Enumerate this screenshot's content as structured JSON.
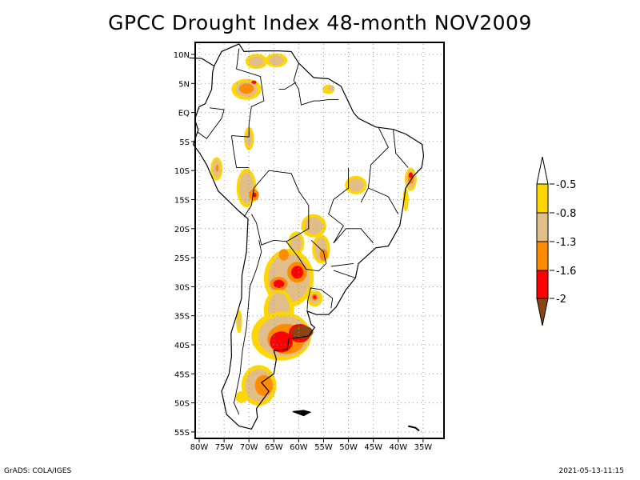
{
  "title": "GPCC Drought Index 48-month NOV2009",
  "footer": {
    "left": "GrADS: COLA/IGES",
    "right": "2021-05-13-11:15"
  },
  "map": {
    "region": "South America",
    "lon_range": [
      -80,
      -30
    ],
    "lat_range": [
      -55,
      12
    ],
    "x_ticks": [
      "80W",
      "75W",
      "70W",
      "65W",
      "60W",
      "55W",
      "50W",
      "45W",
      "40W",
      "35W"
    ],
    "y_ticks": [
      "10N",
      "5N",
      "EQ",
      "5S",
      "10S",
      "15S",
      "20S",
      "25S",
      "30S",
      "35S",
      "40S",
      "45S",
      "50S",
      "55S"
    ],
    "grid": true
  },
  "legend": {
    "labels": [
      "-0.5",
      "-0.8",
      "-1.3",
      "-1.6",
      "-2"
    ],
    "colors": {
      "above": "#ffffff",
      "c1": "#ffd700",
      "c2": "#e1be87",
      "c3": "#ff8c00",
      "c4": "#ff0000",
      "below": "#8b4513"
    }
  }
}
